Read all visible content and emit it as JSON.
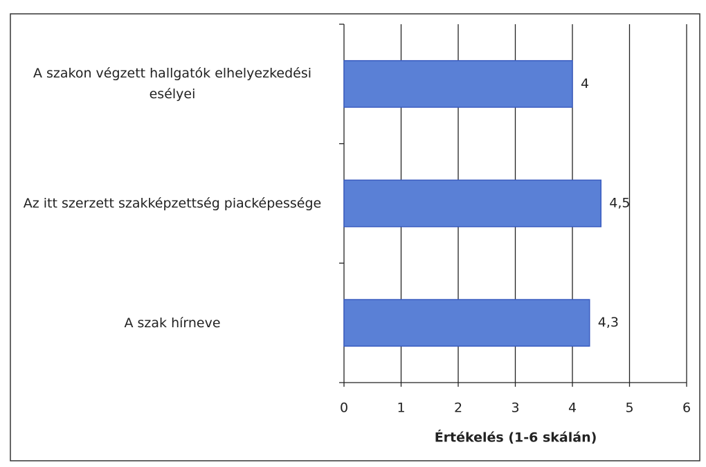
{
  "chart_data": {
    "type": "bar",
    "orientation": "horizontal",
    "categories": [
      "A szakon végzett hallgatók elhelyezkedési esélyei",
      "Az itt szerzett szakképzettség piacképessége",
      "A szak hírneve"
    ],
    "values": [
      4,
      4.5,
      4.3
    ],
    "value_labels": [
      "4",
      "4,5",
      "4,3"
    ],
    "color": "#5a80d6",
    "xlabel": "Értékelés (1-6 skálán)",
    "xlim": [
      0,
      6
    ],
    "xticks": [
      0,
      1,
      2,
      3,
      4,
      5,
      6
    ],
    "grid": true
  }
}
